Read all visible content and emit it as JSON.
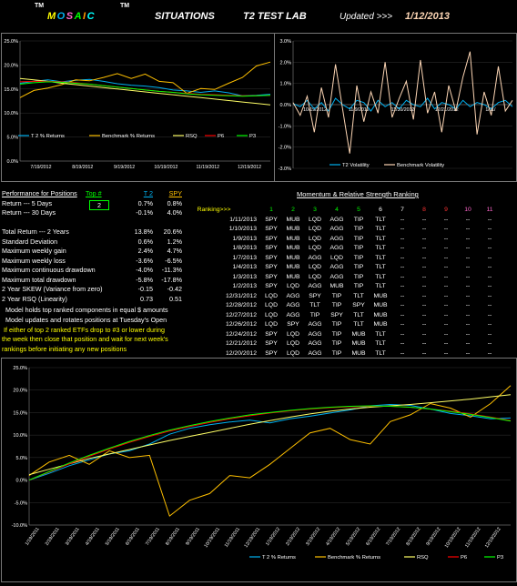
{
  "header": {
    "logo_parts": [
      "M",
      "O",
      "S",
      "A",
      "I",
      "C"
    ],
    "logo_colors": [
      "#ffff00",
      "#00b0f0",
      "#ff66cc",
      "#00ff00",
      "#ff9900",
      "#00ffff"
    ],
    "tm": "TM",
    "situations": "SITUATIONS",
    "tm2": "TM",
    "lab": "T2 TEST LAB",
    "updated_label": "Updated >>>",
    "updated_date": "1/12/2013"
  },
  "perf": {
    "title": "Performance for Positions",
    "top_label": "Top #",
    "col_t2": "T 2",
    "col_spy": "SPY",
    "top_value": "2",
    "rows": [
      {
        "label": "Return --- 5 Days",
        "t2": "0.7%",
        "spy": "0.8%"
      },
      {
        "label": "Return --- 30 Days",
        "t2": "-0.1%",
        "spy": "4.0%"
      },
      {
        "label": "",
        "t2": "",
        "spy": ""
      },
      {
        "label": "Total Return --- 2 Years",
        "t2": "13.8%",
        "spy": "20.6%"
      },
      {
        "label": "Standard Deviation",
        "t2": "0.6%",
        "spy": "1.2%"
      },
      {
        "label": "Maximum weekly gain",
        "t2": "2.4%",
        "spy": "4.7%"
      },
      {
        "label": "Maximum weekly loss",
        "t2": "-3.6%",
        "spy": "-6.5%"
      },
      {
        "label": "Maximum continuous drawdown",
        "t2": "-4.0%",
        "spy": "-11.3%"
      },
      {
        "label": "Maximum total drawdown",
        "t2": "-5.8%",
        "spy": "-17.8%"
      },
      {
        "label": "2 Year SKEW  (Variance from zero)",
        "t2": "-0.15",
        "spy": "-0.42"
      },
      {
        "label": "2 Year RSQ  (Linearity)",
        "t2": "0.73",
        "spy": "0.51"
      }
    ]
  },
  "notes": {
    "line1": "Model holds top ranked  components in equal  $ amounts",
    "line2": "Model updates and rotates positions at Tuesday's Open",
    "line3": "If either of top 2 ranked ETFs drop to #3 or lower during",
    "line4": "the week then close that position and wait for next week's",
    "line5": "rankings before initiating any new positions"
  },
  "ranking": {
    "title": "Momentum & Relative Strength Ranking",
    "label": "Ranking>>>",
    "headers": [
      "1",
      "2",
      "3",
      "4",
      "5",
      "6",
      "7",
      "8",
      "9",
      "10",
      "11"
    ],
    "header_colors": [
      "#00ff00",
      "#00ff00",
      "#00ff00",
      "#00ff00",
      "#00ff00",
      "#ffffff",
      "#ffffff",
      "#ff3333",
      "#ff3333",
      "#ff66cc",
      "#ff66cc"
    ],
    "rows": [
      {
        "date": "1/11/2013",
        "c": [
          "SPY",
          "MUB",
          "LQD",
          "AGG",
          "TIP",
          "TLT",
          "--",
          "--",
          "--",
          "--",
          "--"
        ]
      },
      {
        "date": "1/10/2013",
        "c": [
          "SPY",
          "MUB",
          "LQD",
          "AGG",
          "TIP",
          "TLT",
          "--",
          "--",
          "--",
          "--",
          "--"
        ]
      },
      {
        "date": "1/9/2013",
        "c": [
          "SPY",
          "MUB",
          "LQD",
          "AGG",
          "TIP",
          "TLT",
          "--",
          "--",
          "--",
          "--",
          "--"
        ]
      },
      {
        "date": "1/8/2013",
        "c": [
          "SPY",
          "MUB",
          "LQD",
          "AGG",
          "TIP",
          "TLT",
          "--",
          "--",
          "--",
          "--",
          "--"
        ]
      },
      {
        "date": "1/7/2013",
        "c": [
          "SPY",
          "MUB",
          "AGG",
          "LQD",
          "TIP",
          "TLT",
          "--",
          "--",
          "--",
          "--",
          "--"
        ]
      },
      {
        "date": "1/4/2013",
        "c": [
          "SPY",
          "MUB",
          "LQD",
          "AGG",
          "TIP",
          "TLT",
          "--",
          "--",
          "--",
          "--",
          "--"
        ]
      },
      {
        "date": "1/3/2013",
        "c": [
          "SPY",
          "MUB",
          "LQD",
          "AGG",
          "TIP",
          "TLT",
          "--",
          "--",
          "--",
          "--",
          "--"
        ]
      },
      {
        "date": "1/2/2013",
        "c": [
          "SPY",
          "LQD",
          "AGG",
          "MUB",
          "TIP",
          "TLT",
          "--",
          "--",
          "--",
          "--",
          "--"
        ]
      },
      {
        "date": "12/31/2012",
        "c": [
          "LQD",
          "AGG",
          "SPY",
          "TIP",
          "TLT",
          "MUB",
          "--",
          "--",
          "--",
          "--",
          "--"
        ]
      },
      {
        "date": "12/28/2012",
        "c": [
          "LQD",
          "AGG",
          "TLT",
          "TIP",
          "SPY",
          "MUB",
          "--",
          "--",
          "--",
          "--",
          "--"
        ]
      },
      {
        "date": "12/27/2012",
        "c": [
          "LQD",
          "AGG",
          "TIP",
          "SPY",
          "TLT",
          "MUB",
          "--",
          "--",
          "--",
          "--",
          "--"
        ]
      },
      {
        "date": "12/26/2012",
        "c": [
          "LQD",
          "SPY",
          "AGG",
          "TIP",
          "TLT",
          "MUB",
          "--",
          "--",
          "--",
          "--",
          "--"
        ]
      },
      {
        "date": "12/24/2012",
        "c": [
          "SPY",
          "LQD",
          "AGG",
          "TIP",
          "MUB",
          "TLT",
          "--",
          "--",
          "--",
          "--",
          "--"
        ]
      },
      {
        "date": "12/21/2012",
        "c": [
          "SPY",
          "LQD",
          "AGG",
          "TIP",
          "MUB",
          "TLT",
          "--",
          "--",
          "--",
          "--",
          "--"
        ]
      },
      {
        "date": "12/20/2012",
        "c": [
          "SPY",
          "LQD",
          "AGG",
          "TIP",
          "MUB",
          "TLT",
          "--",
          "--",
          "--",
          "--",
          "--"
        ]
      }
    ]
  },
  "chart_data": [
    {
      "type": "line",
      "x_ticks": [
        "7/19/2012",
        "8/19/2012",
        "9/19/2012",
        "10/19/2012",
        "11/19/2012",
        "12/19/2012"
      ],
      "y_ticks": [
        "0.0%",
        "5.0%",
        "10.0%",
        "15.0%",
        "20.0%",
        "25.0%"
      ],
      "ylim": [
        0,
        25
      ],
      "legend": [
        "T 2 % Returns",
        "Benchmark % Returns",
        "RSQ",
        "P6",
        "P3"
      ],
      "colors": [
        "#00b0f0",
        "#ffc000",
        "#ffff66",
        "#ff0000",
        "#00ff00"
      ],
      "series": [
        {
          "name": "T 2 % Returns",
          "values": [
            16.2,
            16.6,
            16.9,
            16.5,
            16.8,
            17.0,
            16.6,
            16.1,
            15.8,
            15.6,
            15.3,
            14.8,
            14.6,
            14.3,
            14.6,
            14.2,
            13.6,
            13.7,
            13.9
          ]
        },
        {
          "name": "Benchmark % Returns",
          "values": [
            13.2,
            14.7,
            15.2,
            15.9,
            16.9,
            16.7,
            17.4,
            18.2,
            17.2,
            18.1,
            16.6,
            16.3,
            14.1,
            15.1,
            14.9,
            16.2,
            17.4,
            19.8,
            20.6
          ]
        },
        {
          "name": "RSQ",
          "values": [
            17.2,
            16.9,
            16.6,
            16.2,
            15.9,
            15.6,
            15.3,
            15.0,
            14.7,
            14.4,
            14.1,
            13.8,
            13.5,
            13.2,
            12.9,
            12.6,
            12.3,
            12.0,
            11.7
          ]
        },
        {
          "name": "P6",
          "values": [
            16.5,
            16.6,
            16.6,
            16.5,
            16.3,
            16.0,
            15.7,
            15.4,
            15.1,
            14.8,
            14.5,
            14.3,
            14.1,
            13.9,
            13.8,
            13.7,
            13.6,
            13.6,
            13.7
          ]
        },
        {
          "name": "P3",
          "values": [
            16.0,
            16.3,
            16.5,
            16.4,
            16.2,
            16.0,
            15.7,
            15.4,
            15.1,
            14.8,
            14.5,
            14.3,
            14.0,
            13.8,
            13.7,
            13.6,
            13.5,
            13.6,
            13.7
          ]
        }
      ]
    },
    {
      "type": "line",
      "x_ticks": [
        "10/19/2012",
        "11/9/2012",
        "11/30/2012",
        "12/21/2012",
        "1/11/"
      ],
      "y_ticks": [
        "-3.0%",
        "-2.0%",
        "-1.0%",
        "0.0%",
        "1.0%",
        "2.0%",
        "3.0%"
      ],
      "ylim": [
        -3,
        3
      ],
      "legend": [
        "T2 Volatility",
        "Benchmark Volatility"
      ],
      "colors": [
        "#00b0f0",
        "#fcd5b4"
      ],
      "series": [
        {
          "name": "T2 Volatility",
          "values": [
            0.05,
            -0.1,
            0.2,
            -0.2,
            0.1,
            -0.3,
            0.3,
            0.0,
            -0.2,
            0.2,
            0.1,
            -0.3,
            0.2,
            -0.1,
            0.1,
            -0.2,
            0.2,
            0.0,
            -0.1,
            0.3,
            -0.2,
            0.1,
            0.0,
            -0.2,
            0.2,
            -0.1,
            0.1,
            0.0,
            -0.2,
            0.1,
            0.2,
            -0.1
          ]
        },
        {
          "name": "Benchmark Volatility",
          "values": [
            0.1,
            -0.5,
            0.4,
            -1.3,
            0.8,
            -0.6,
            1.9,
            -0.2,
            -2.3,
            0.9,
            -0.8,
            0.6,
            -0.4,
            2.0,
            -0.6,
            0.3,
            1.1,
            -0.7,
            2.1,
            -0.4,
            0.6,
            -1.3,
            0.9,
            -0.3,
            1.3,
            2.5,
            -1.4,
            0.6,
            -0.5,
            1.8,
            -0.3,
            0.2
          ]
        }
      ]
    },
    {
      "type": "line",
      "x_ticks": [
        "1/19/2011",
        "2/19/2011",
        "3/19/2011",
        "4/19/2011",
        "5/19/2011",
        "6/19/2011",
        "7/19/2011",
        "8/19/2011",
        "9/19/2011",
        "10/19/2011",
        "11/19/2011",
        "12/19/2011",
        "1/19/2012",
        "2/19/2012",
        "3/19/2012",
        "4/19/2012",
        "5/19/2012",
        "6/19/2012",
        "7/19/2012",
        "8/19/2012",
        "9/19/2012",
        "10/19/2012",
        "11/19/2012",
        "12/19/2012"
      ],
      "y_ticks": [
        "-10.0%",
        "-5.0%",
        "0.0%",
        "5.0%",
        "10.0%",
        "15.0%",
        "20.0%",
        "25.0%"
      ],
      "ylim": [
        -10,
        25
      ],
      "legend": [
        "T 2 % Returns",
        "Benchmark % Returns",
        "RSQ",
        "P6",
        "P3"
      ],
      "colors": [
        "#00b0f0",
        "#ffc000",
        "#ffff66",
        "#ff0000",
        "#00ff00"
      ],
      "series": [
        {
          "name": "T 2 % Returns",
          "values": [
            0.0,
            1.5,
            3.2,
            4.5,
            5.8,
            6.5,
            8.0,
            10.2,
            11.5,
            12.3,
            12.9,
            13.3,
            12.7,
            13.6,
            14.2,
            14.9,
            15.6,
            16.5,
            16.8,
            16.6,
            15.8,
            14.8,
            14.3,
            13.6,
            13.8
          ]
        },
        {
          "name": "Benchmark % Returns",
          "values": [
            1.0,
            4.0,
            5.5,
            3.5,
            6.5,
            5.0,
            5.5,
            -8.0,
            -4.5,
            -3.0,
            1.0,
            0.5,
            3.5,
            7.0,
            10.5,
            11.5,
            9.0,
            8.0,
            13.0,
            14.5,
            17.0,
            16.0,
            14.0,
            17.0,
            21.0
          ]
        },
        {
          "name": "RSQ",
          "values": [
            1.2,
            2.4,
            3.6,
            4.8,
            5.8,
            6.8,
            7.8,
            8.8,
            9.7,
            10.6,
            11.5,
            12.4,
            13.2,
            14.0,
            14.7,
            15.3,
            15.8,
            16.2,
            16.5,
            16.8,
            17.2,
            17.6,
            18.0,
            18.5,
            19.0
          ]
        },
        {
          "name": "P6",
          "values": [
            0.0,
            1.8,
            3.6,
            5.3,
            6.9,
            8.4,
            9.7,
            10.9,
            11.9,
            12.8,
            13.6,
            14.3,
            14.9,
            15.4,
            15.8,
            16.1,
            16.3,
            16.4,
            16.4,
            16.2,
            15.8,
            15.3,
            14.7,
            14.0,
            13.2
          ]
        },
        {
          "name": "P3",
          "values": [
            0.0,
            1.9,
            3.8,
            5.5,
            7.1,
            8.6,
            9.9,
            11.1,
            12.1,
            13.0,
            13.8,
            14.5,
            15.0,
            15.5,
            15.9,
            16.2,
            16.4,
            16.5,
            16.4,
            16.2,
            15.8,
            15.2,
            14.6,
            13.9,
            13.1
          ]
        }
      ]
    }
  ]
}
